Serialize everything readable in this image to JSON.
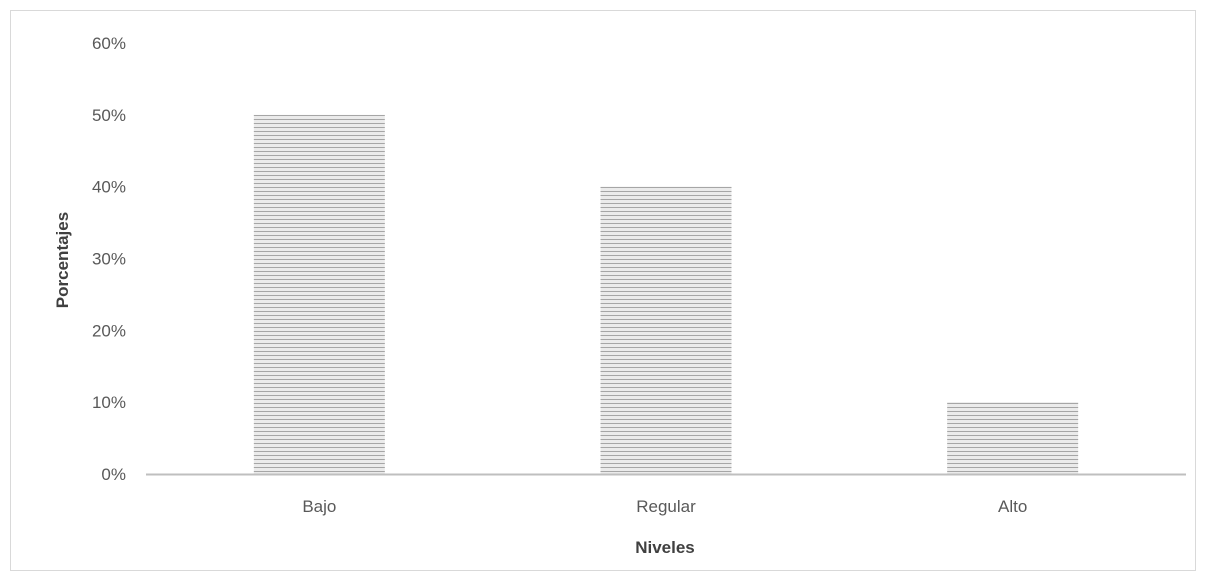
{
  "chart_data": {
    "type": "bar",
    "title": "",
    "xlabel": "Niveles",
    "ylabel": "Porcentajes",
    "categories": [
      "Bajo",
      "Regular",
      "Alto"
    ],
    "values": [
      50,
      40,
      10
    ],
    "value_format": "percent",
    "ylim": [
      0,
      60
    ],
    "yticks": [
      0,
      10,
      20,
      30,
      40,
      50,
      60
    ],
    "ytick_labels": [
      "0%",
      "10%",
      "20%",
      "30%",
      "40%",
      "50%",
      "60%"
    ],
    "grid": false,
    "legend": false,
    "bar_fill": "horizontal-stripes",
    "colors": {
      "bar_light": "#ebebeb",
      "bar_dark": "#a6a6a6",
      "axis": "#bfbfbf",
      "text": "#595959"
    }
  }
}
